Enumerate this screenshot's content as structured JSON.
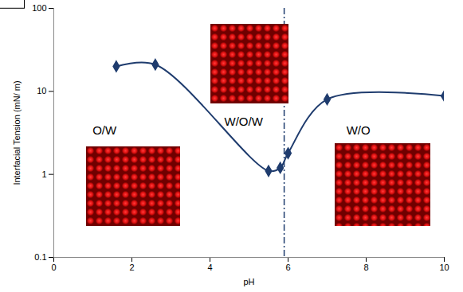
{
  "chart_data": {
    "type": "line",
    "x_label": "pH",
    "y_label": "Interfacial Tension (mN/ m)",
    "x": [
      1.6,
      2.6,
      5.5,
      5.8,
      6.0,
      7.0,
      10.0
    ],
    "values": [
      20,
      21,
      1.1,
      1.2,
      1.8,
      8,
      8.8
    ],
    "color": "#1f3c6e",
    "marker": "diamond",
    "line_style": "solid",
    "log": "y",
    "xlim": [
      0,
      10
    ],
    "ylim": [
      0.1,
      100
    ],
    "xticks": [
      0,
      2,
      4,
      6,
      8,
      10
    ],
    "yticks": [
      0.1,
      1,
      10,
      100
    ],
    "grid": false,
    "annotations": [
      {
        "text": "O/W",
        "x": 1.3,
        "y": 3.4
      },
      {
        "text": "W/O/W",
        "x": 4.86,
        "y": 4.3,
        "boxed": true
      },
      {
        "text": "W/O",
        "x": 7.8,
        "y": 3.4
      }
    ],
    "vline": {
      "x": 5.9,
      "line_style": "dashdot"
    }
  }
}
